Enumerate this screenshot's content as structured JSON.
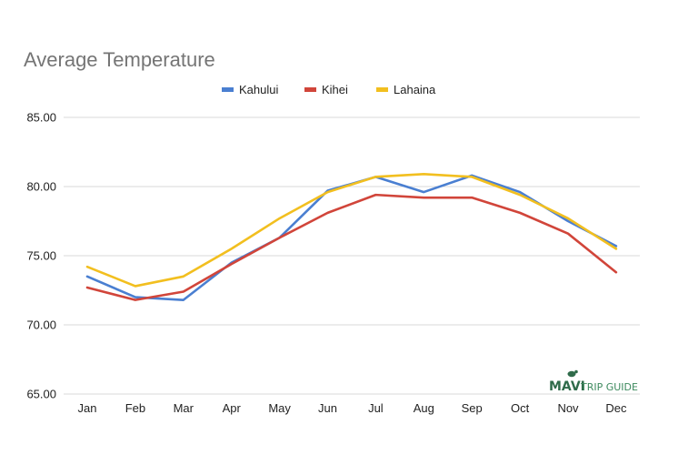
{
  "chart_data": {
    "type": "line",
    "title": "Average Temperature",
    "xlabel": "",
    "ylabel": "",
    "ylim": [
      65,
      85
    ],
    "y_ticks": [
      "65.00",
      "70.00",
      "75.00",
      "80.00",
      "85.00"
    ],
    "y_tick_values": [
      65,
      70,
      75,
      80,
      85
    ],
    "grid": true,
    "legend_position": "top-center",
    "categories": [
      "Jan",
      "Feb",
      "Mar",
      "Apr",
      "May",
      "Jun",
      "Jul",
      "Aug",
      "Sep",
      "Oct",
      "Nov",
      "Dec"
    ],
    "series": [
      {
        "name": "Kahului",
        "color": "#4a7fd1",
        "values": [
          73.5,
          72.0,
          71.8,
          74.5,
          76.3,
          79.7,
          80.7,
          79.6,
          80.8,
          79.6,
          77.5,
          75.7
        ]
      },
      {
        "name": "Kihei",
        "color": "#d1453a",
        "values": [
          72.7,
          71.8,
          72.4,
          74.4,
          76.3,
          78.1,
          79.4,
          79.2,
          79.2,
          78.1,
          76.6,
          73.8
        ]
      },
      {
        "name": "Lahaina",
        "color": "#f2bf1f",
        "values": [
          74.2,
          72.8,
          73.5,
          75.5,
          77.7,
          79.6,
          80.7,
          80.9,
          80.7,
          79.4,
          77.7,
          75.5
        ]
      }
    ]
  },
  "watermark": {
    "brand": "MAVI",
    "text": "TRIP GUIDE",
    "color": "#2f6b4a"
  }
}
